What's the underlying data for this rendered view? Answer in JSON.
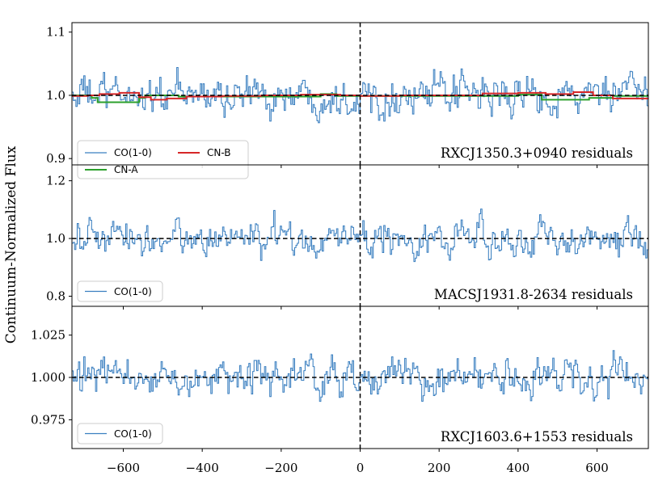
{
  "ylabel": "Continuum-Normalized Flux",
  "xlim": [
    -730,
    730
  ],
  "x_ticks": [
    -600,
    -400,
    -200,
    0,
    200,
    400,
    600
  ],
  "x_tick_labels": [
    "−600",
    "−400",
    "−200",
    "0",
    "200",
    "400",
    "600"
  ],
  "colors": {
    "co": "#3a7fc0",
    "cn_a": "#2ca02c",
    "cn_b": "#d62728",
    "axis": "#000000"
  },
  "chart_data": [
    {
      "type": "line",
      "panel_label": "RXCJ1350.3+0940 residuals",
      "ylim": [
        0.89,
        1.115
      ],
      "y_ticks": [
        0.9,
        1.0,
        1.1
      ],
      "y_tick_labels": [
        "0.9",
        "1.0",
        "1.1"
      ],
      "reference_lines": {
        "horizontal": 1.0,
        "vertical": 0
      },
      "noise_amplitude": 0.036,
      "legend": [
        {
          "label": "CO(1-0)",
          "series": "co"
        },
        {
          "label": "CN-B",
          "series": "cn_b"
        },
        {
          "label": "CN-A",
          "series": "cn_a"
        }
      ],
      "series": [
        {
          "name": "CO(1-0)",
          "key": "co",
          "style": "steps",
          "x_range": [
            -730,
            730
          ],
          "channels": 440,
          "baseline": 1.0
        },
        {
          "name": "CN-A",
          "key": "cn_a",
          "style": "steps",
          "x": [
            -730,
            -680,
            -665,
            -560,
            -545,
            -460,
            -100,
            -60,
            400,
            460,
            580,
            640,
            730
          ],
          "values": [
            1.0,
            0.996,
            0.989,
            0.996,
            1.0,
            0.998,
            1.002,
            0.999,
            1.001,
            0.993,
            0.996,
            0.999,
            0.999
          ]
        },
        {
          "name": "CN-B",
          "key": "cn_b",
          "style": "steps",
          "x": [
            -730,
            -690,
            -660,
            -610,
            -560,
            -530,
            -490,
            -440,
            -350,
            -250,
            -150,
            -50,
            0,
            100,
            200,
            310,
            400,
            470,
            540,
            590,
            640,
            730
          ],
          "values": [
            0.999,
            1.0,
            1.002,
            1.004,
            0.997,
            0.993,
            0.995,
            0.998,
            0.999,
            1.0,
            1.001,
            1.0,
            0.999,
            1.0,
            1.0,
            1.003,
            1.004,
            1.002,
            1.005,
            1.0,
            0.995,
            0.995
          ]
        }
      ]
    },
    {
      "type": "line",
      "panel_label": "MACSJ1931.8-2634 residuals",
      "ylim": [
        0.765,
        1.255
      ],
      "y_ticks": [
        0.8,
        1.0,
        1.2
      ],
      "y_tick_labels": [
        "0.8",
        "1.0",
        "1.2"
      ],
      "reference_lines": {
        "horizontal": 1.0,
        "vertical": 0
      },
      "noise_amplitude": 0.07,
      "legend": [
        {
          "label": "CO(1-0)",
          "series": "co"
        }
      ],
      "series": [
        {
          "name": "CO(1-0)",
          "key": "co",
          "style": "steps",
          "x_range": [
            -730,
            730
          ],
          "channels": 440,
          "baseline": 1.0
        }
      ]
    },
    {
      "type": "line",
      "panel_label": "RXCJ1603.6+1553 residuals",
      "ylim": [
        0.958,
        1.042
      ],
      "y_ticks": [
        0.975,
        1.0,
        1.025
      ],
      "y_tick_labels": [
        "0.975",
        "1.000",
        "1.025"
      ],
      "reference_lines": {
        "horizontal": 1.0,
        "vertical": 0
      },
      "noise_amplitude": 0.0125,
      "legend": [
        {
          "label": "CO(1-0)",
          "series": "co"
        }
      ],
      "series": [
        {
          "name": "CO(1-0)",
          "key": "co",
          "style": "steps",
          "x_range": [
            -730,
            730
          ],
          "channels": 440,
          "baseline": 1.0
        }
      ]
    }
  ]
}
